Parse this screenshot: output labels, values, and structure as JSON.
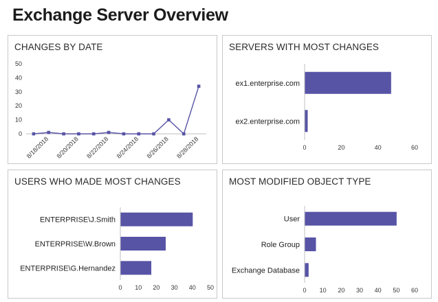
{
  "page": {
    "title": "Exchange Server Overview"
  },
  "colors": {
    "series": "#5754a6",
    "axis": "#bfbfbf",
    "grid": "#d9d9d9"
  },
  "panels": {
    "changes_by_date": {
      "title": "CHANGES BY DATE"
    },
    "servers": {
      "title": "SERVERS WITH MOST CHANGES"
    },
    "users": {
      "title": "USERS WHO MADE MOST CHANGES"
    },
    "object_type": {
      "title": "MOST MODIFIED OBJECT TYPE"
    }
  },
  "chart_data": [
    {
      "id": "changes_by_date",
      "type": "line",
      "title": "CHANGES BY DATE",
      "x": [
        "8/17/2018",
        "8/18/2018",
        "8/19/2018",
        "8/20/2018",
        "8/21/2018",
        "8/22/2018",
        "8/23/2018",
        "8/24/2018",
        "8/25/2018",
        "8/26/2018",
        "8/27/2018",
        "8/28/2018"
      ],
      "x_tick_labels": [
        "8/18/2018",
        "8/20/2018",
        "8/22/2018",
        "8/24/2018",
        "8/26/2018",
        "8/28/2018"
      ],
      "values": [
        0,
        1,
        0,
        0,
        0,
        1,
        0,
        0,
        0,
        10,
        0,
        34
      ],
      "ylim": [
        0,
        50
      ],
      "y_ticks": [
        0,
        10,
        20,
        30,
        40,
        50
      ],
      "grid": false
    },
    {
      "id": "servers",
      "type": "bar",
      "orientation": "horizontal",
      "title": "SERVERS WITH MOST CHANGES",
      "categories": [
        "ex1.enterprise.com",
        "ex2.enterprise.com"
      ],
      "values": [
        47,
        1.5
      ],
      "xlim": [
        0,
        60
      ],
      "x_ticks": [
        0,
        20,
        40,
        60
      ]
    },
    {
      "id": "users",
      "type": "bar",
      "orientation": "horizontal",
      "title": "USERS WHO MADE MOST CHANGES",
      "categories": [
        "ENTERPRISE\\J.Smith",
        "ENTERPRISE\\W.Brown",
        "ENTERPRISE\\G.Hernandez"
      ],
      "values": [
        40,
        25,
        17
      ],
      "xlim": [
        0,
        50
      ],
      "x_ticks": [
        0,
        10,
        20,
        30,
        40,
        50
      ]
    },
    {
      "id": "object_type",
      "type": "bar",
      "orientation": "horizontal",
      "title": "MOST MODIFIED OBJECT TYPE",
      "categories": [
        "User",
        "Role Group",
        "Exchange Database"
      ],
      "values": [
        50,
        6,
        2
      ],
      "xlim": [
        0,
        60
      ],
      "x_ticks": [
        0,
        10,
        20,
        30,
        40,
        50,
        60
      ]
    }
  ]
}
